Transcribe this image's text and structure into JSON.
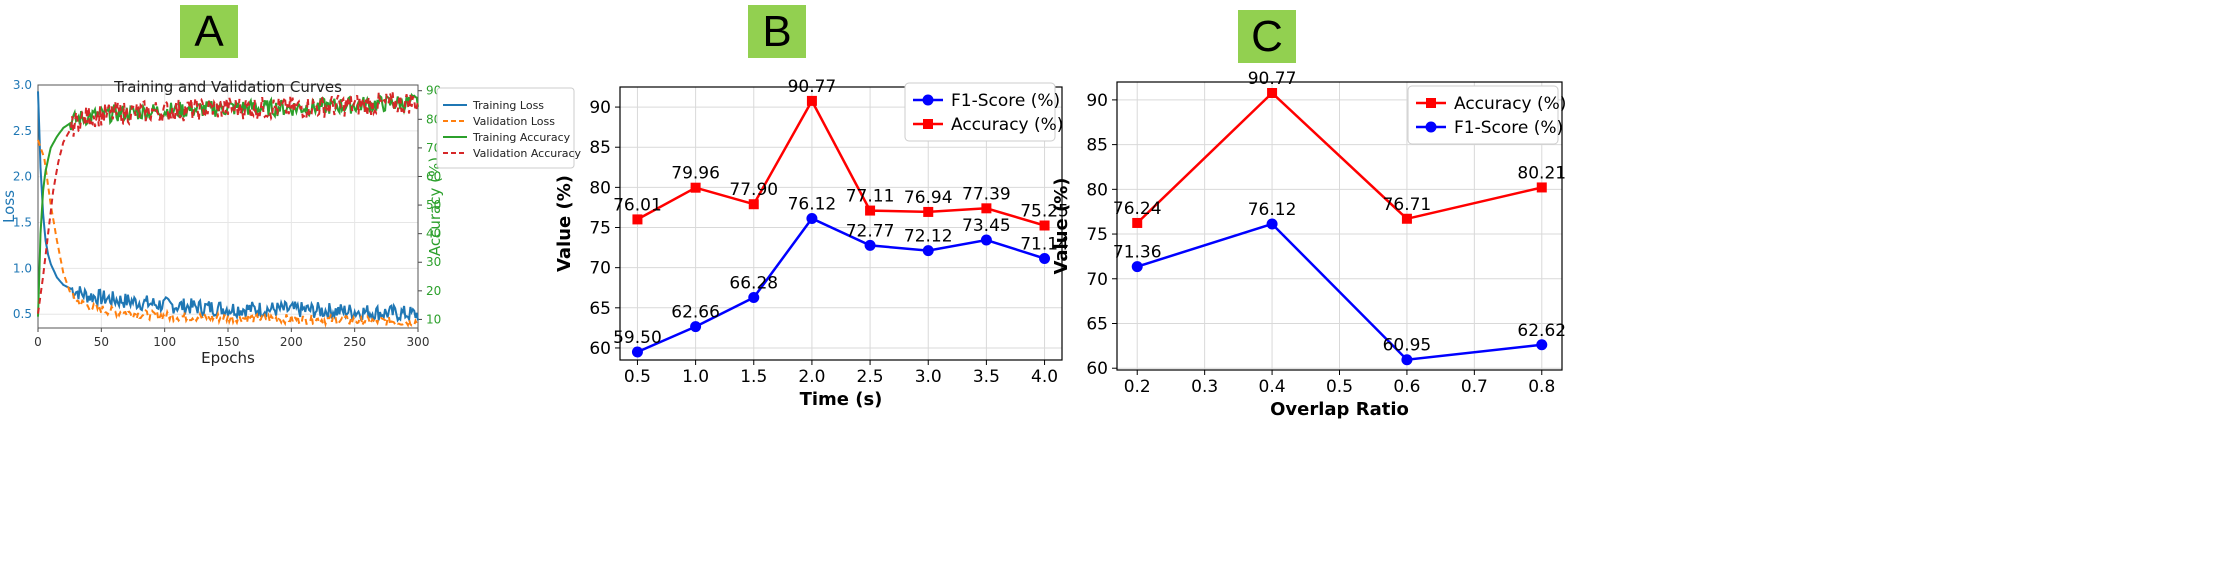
{
  "panels": {
    "a": "A",
    "b": "B",
    "c": "C"
  },
  "chart_data": [
    {
      "type": "line",
      "title": "Training and Validation Curves",
      "xlabel": "Epochs",
      "ylabel": "Loss",
      "ylabel_right": "Accuracy (%)",
      "xlim": [
        0,
        300
      ],
      "ylim": [
        0.35,
        3.0
      ],
      "ylim_right": [
        7,
        92
      ],
      "xticks": [
        0,
        50,
        100,
        150,
        200,
        250,
        300
      ],
      "yticks": [
        0.5,
        1.0,
        1.5,
        2.0,
        2.5,
        3.0
      ],
      "yticks_right": [
        10,
        20,
        30,
        40,
        50,
        60,
        70,
        80,
        90
      ],
      "grid": true,
      "legend": "top-right (outside)",
      "series": [
        {
          "name": "Training Loss",
          "axis": "left",
          "color": "#1f77b4",
          "style": "solid",
          "x": [
            0,
            2,
            4,
            6,
            8,
            10,
            15,
            20,
            30,
            40,
            60,
            80,
            100,
            150,
            200,
            250,
            300
          ],
          "y": [
            2.93,
            2.1,
            1.6,
            1.3,
            1.15,
            1.05,
            0.9,
            0.82,
            0.75,
            0.7,
            0.66,
            0.63,
            0.6,
            0.56,
            0.55,
            0.53,
            0.5
          ]
        },
        {
          "name": "Validation Loss",
          "axis": "left",
          "color": "#ff7f0e",
          "style": "dashed",
          "x": [
            0,
            5,
            10,
            15,
            20,
            25,
            30,
            40,
            60,
            80,
            100,
            150,
            200,
            250,
            300
          ],
          "y": [
            2.4,
            2.2,
            1.7,
            1.3,
            0.95,
            0.75,
            0.65,
            0.58,
            0.53,
            0.5,
            0.48,
            0.46,
            0.45,
            0.43,
            0.42
          ]
        },
        {
          "name": "Training Accuracy",
          "axis": "right",
          "color": "#2ca02c",
          "style": "solid",
          "x": [
            0,
            2,
            4,
            6,
            8,
            10,
            15,
            20,
            30,
            40,
            60,
            100,
            150,
            200,
            250,
            300
          ],
          "y": [
            11,
            40,
            55,
            62,
            66,
            70,
            74,
            77,
            80,
            81,
            82,
            83,
            84,
            84,
            85,
            86
          ]
        },
        {
          "name": "Validation Accuracy",
          "axis": "right",
          "color": "#d62728",
          "style": "dashed",
          "x": [
            0,
            4,
            8,
            12,
            16,
            20,
            25,
            30,
            40,
            60,
            100,
            150,
            200,
            250,
            300
          ],
          "y": [
            12,
            25,
            40,
            55,
            65,
            72,
            76,
            79,
            81,
            82,
            83,
            84,
            84,
            85,
            86
          ]
        }
      ]
    },
    {
      "type": "line",
      "xlabel": "Time (s)",
      "ylabel": "Value (%)",
      "xlim": [
        0.35,
        4.15
      ],
      "ylim": [
        58.5,
        92.5
      ],
      "xticks": [
        0.5,
        1.0,
        1.5,
        2.0,
        2.5,
        3.0,
        3.5,
        4.0
      ],
      "xtick_labels": [
        "0.5",
        "1.0",
        "1.5",
        "2.0",
        "2.5",
        "3.0",
        "3.5",
        "4.0"
      ],
      "yticks": [
        60,
        65,
        70,
        75,
        80,
        85,
        90
      ],
      "grid": true,
      "legend": "top-right",
      "x": [
        0.5,
        1.0,
        1.5,
        2.0,
        2.5,
        3.0,
        3.5,
        4.0
      ],
      "series": [
        {
          "name": "F1-Score (%)",
          "color": "#0000ff",
          "marker": "circle",
          "values": [
            59.5,
            62.66,
            66.28,
            76.12,
            72.77,
            72.12,
            73.45,
            71.14
          ],
          "labels": [
            "59.50",
            "62.66",
            "66.28",
            "76.12",
            "72.77",
            "72.12",
            "73.45",
            "71.14"
          ]
        },
        {
          "name": "Accuracy (%)",
          "color": "#ff0000",
          "marker": "square",
          "values": [
            76.01,
            79.96,
            77.9,
            90.77,
            77.11,
            76.94,
            77.39,
            75.25
          ],
          "labels": [
            "76.01",
            "79.96",
            "77.90",
            "90.77",
            "77.11",
            "76.94",
            "77.39",
            "75.25"
          ]
        }
      ]
    },
    {
      "type": "line",
      "xlabel": "Overlap Ratio",
      "ylabel": "Value (%)",
      "xlim": [
        0.17,
        0.83
      ],
      "ylim": [
        59.8,
        92.0
      ],
      "xticks": [
        0.2,
        0.3,
        0.4,
        0.5,
        0.6,
        0.7,
        0.8
      ],
      "xtick_labels": [
        "0.2",
        "0.3",
        "0.4",
        "0.5",
        "0.6",
        "0.7",
        "0.8"
      ],
      "yticks": [
        60,
        65,
        70,
        75,
        80,
        85,
        90
      ],
      "grid": true,
      "legend": "top-right",
      "x": [
        0.2,
        0.4,
        0.6,
        0.8
      ],
      "series": [
        {
          "name": "Accuracy (%)",
          "color": "#ff0000",
          "marker": "square",
          "values": [
            76.24,
            90.77,
            76.71,
            80.21
          ],
          "labels": [
            "76.24",
            "90.77",
            "76.71",
            "80.21"
          ]
        },
        {
          "name": "F1-Score (%)",
          "color": "#0000ff",
          "marker": "circle",
          "values": [
            71.36,
            76.12,
            60.95,
            62.62
          ],
          "labels": [
            "71.36",
            "76.12",
            "60.95",
            "62.62"
          ]
        }
      ]
    }
  ]
}
